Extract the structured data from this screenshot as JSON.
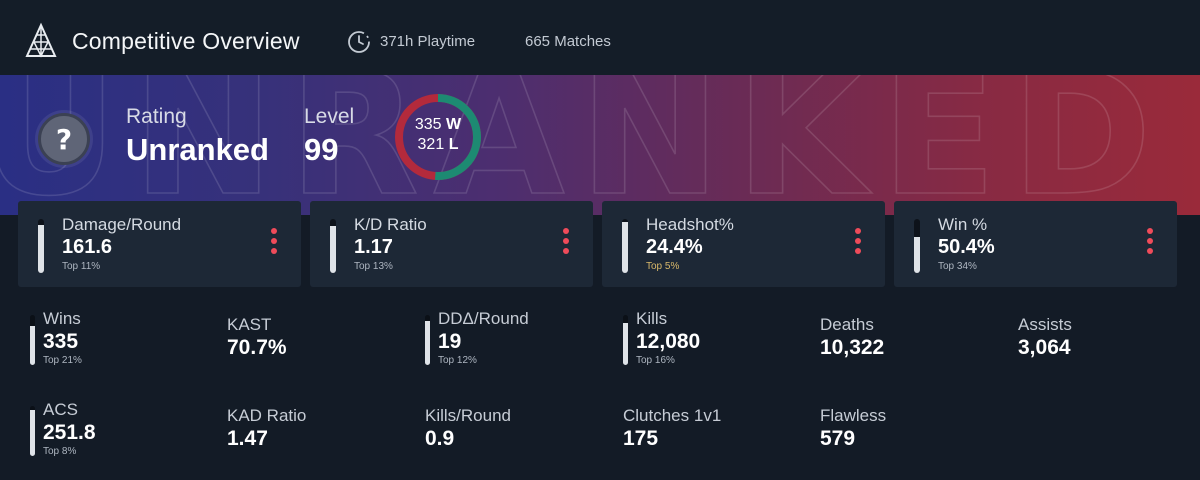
{
  "header": {
    "title": "Competitive Overview",
    "logo_icon": "tower-logo-icon",
    "playtime_icon": "clock-icon",
    "playtime": "371h Playtime",
    "matches": "665 Matches"
  },
  "banner": {
    "watermark_text": "UNRANKED",
    "rank_icon": "question-mark-icon",
    "rating_label": "Rating",
    "rating_value": "Unranked",
    "level_label": "Level",
    "level_value": "99",
    "wins_value": "335",
    "wins_suffix": "W",
    "losses_value": "321",
    "losses_suffix": "L",
    "ring_colors": {
      "wins": "#1d8a72",
      "losses": "#b32a3c"
    }
  },
  "highlight_cards": [
    {
      "label": "Damage/Round",
      "value": "161.6",
      "percentile": "Top 11%",
      "bar_fraction": 0.89,
      "gold": false
    },
    {
      "label": "K/D Ratio",
      "value": "1.17",
      "percentile": "Top 13%",
      "bar_fraction": 0.87,
      "gold": false
    },
    {
      "label": "Headshot%",
      "value": "24.4%",
      "percentile": "Top 5%",
      "bar_fraction": 0.95,
      "gold": true
    },
    {
      "label": "Win %",
      "value": "50.4%",
      "percentile": "Top 34%",
      "bar_fraction": 0.66,
      "gold": false
    }
  ],
  "stats": [
    {
      "label": "Wins",
      "value": "335",
      "percentile": "Top 21%",
      "bar_fraction": 0.79
    },
    {
      "label": "KAST",
      "value": "70.7%"
    },
    {
      "label": "DDΔ/Round",
      "value": "19",
      "percentile": "Top 12%",
      "bar_fraction": 0.88
    },
    {
      "label": "Kills",
      "value": "12,080",
      "percentile": "Top 16%",
      "bar_fraction": 0.84
    },
    {
      "label": "Deaths",
      "value": "10,322"
    },
    {
      "label": "Assists",
      "value": "3,064"
    },
    {
      "label": "ACS",
      "value": "251.8",
      "percentile": "Top 8%",
      "bar_fraction": 0.92
    },
    {
      "label": "KAD Ratio",
      "value": "1.47"
    },
    {
      "label": "Kills/Round",
      "value": "0.9"
    },
    {
      "label": "Clutches 1v1",
      "value": "175"
    },
    {
      "label": "Flawless",
      "value": "579"
    }
  ],
  "colors": {
    "accent": "#ef4b5a",
    "percentile_gold": "#d8b86a",
    "background": "#131b26",
    "card": "#1d2836"
  }
}
